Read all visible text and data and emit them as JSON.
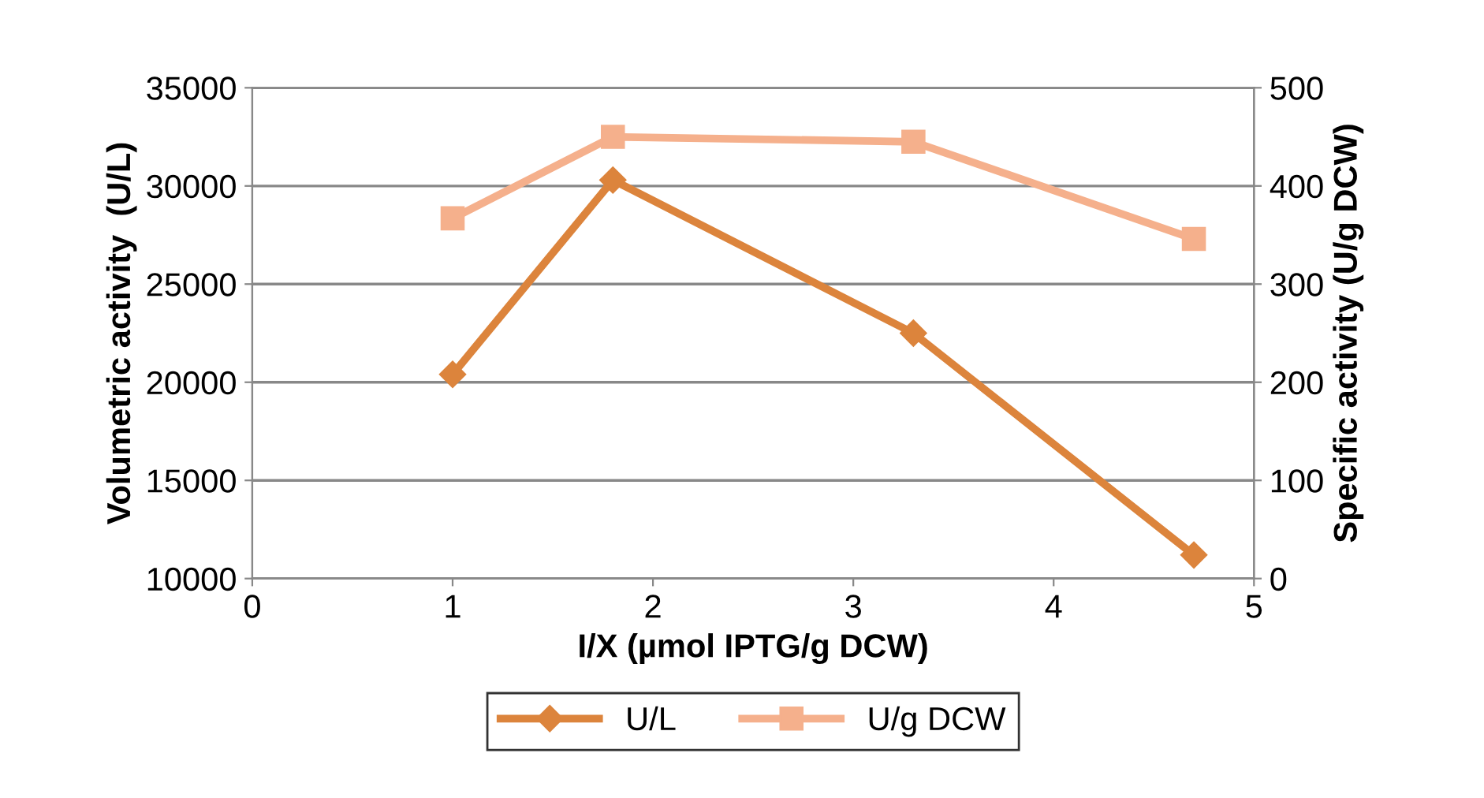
{
  "chart_data": {
    "type": "line",
    "xlabel": "I/X (µmol IPTG/g DCW)",
    "ylabel": "Volumetric activity  (U/L)",
    "y2label": "Specific activity (U/g DCW)",
    "xlim": [
      0,
      5
    ],
    "xticks": [
      0,
      1,
      2,
      3,
      4,
      5
    ],
    "ylim": [
      10000,
      35000
    ],
    "yticks": [
      10000,
      15000,
      20000,
      25000,
      30000,
      35000
    ],
    "y2lim": [
      0,
      500
    ],
    "y2ticks": [
      0,
      100,
      200,
      300,
      400,
      500
    ],
    "grid": "y",
    "legend": "bottom",
    "line_style": "solid",
    "series": [
      {
        "name": "U/L",
        "color": "#dc843c",
        "x": [
          1,
          1.8,
          3.3,
          4.7
        ],
        "values": [
          20400,
          30300,
          22500,
          11200
        ],
        "marker": "diamond"
      },
      {
        "name": "U/g DCW",
        "color": "#f5b08c",
        "x": [
          1,
          1.8,
          3.3,
          4.7
        ],
        "values": [
          367,
          450,
          445,
          346
        ],
        "marker": "square",
        "axis": "y2"
      }
    ]
  }
}
